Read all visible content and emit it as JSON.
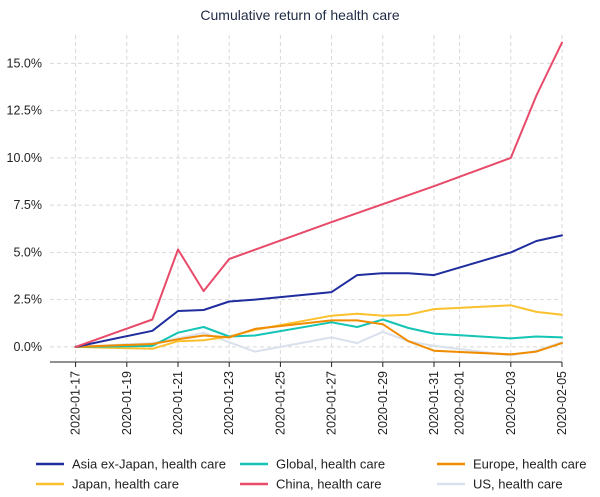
{
  "chart_data": {
    "type": "line",
    "title": "Cumulative return of health care",
    "xlabel": "",
    "ylabel": "",
    "x": [
      "2020-01-17",
      "2020-01-20",
      "2020-01-21",
      "2020-01-22",
      "2020-01-23",
      "2020-01-24",
      "2020-01-27",
      "2020-01-28",
      "2020-01-29",
      "2020-01-30",
      "2020-01-31",
      "2020-02-03",
      "2020-02-04",
      "2020-02-05"
    ],
    "x_tick_labels": [
      "2020-01-17",
      "2020-01-19",
      "2020-01-21",
      "2020-01-23",
      "2020-01-25",
      "2020-01-27",
      "2020-01-29",
      "2020-01-31",
      "2020-02-01",
      "2020-02-03",
      "2020-02-05"
    ],
    "y_ticks": [
      0,
      2.5,
      5,
      7.5,
      10,
      12.5,
      15
    ],
    "y_tick_labels": [
      "0.0%",
      "2.5%",
      "5.0%",
      "7.5%",
      "10.0%",
      "12.5%",
      "15.0%"
    ],
    "ylim": [
      -0.8,
      16.5
    ],
    "xlim": [
      "2020-01-16",
      "2020-02-05"
    ],
    "grid": true,
    "legend_position": "bottom",
    "series": [
      {
        "name": "Asia ex-Japan, health care",
        "color": "#1f2d9e",
        "points": [
          [
            "2020-01-17",
            0
          ],
          [
            "2020-01-20",
            0.85
          ],
          [
            "2020-01-21",
            1.9
          ],
          [
            "2020-01-22",
            1.95
          ],
          [
            "2020-01-23",
            2.4
          ],
          [
            "2020-01-24",
            2.5
          ],
          [
            "2020-01-27",
            2.9
          ],
          [
            "2020-01-28",
            3.8
          ],
          [
            "2020-01-29",
            3.9
          ],
          [
            "2020-01-30",
            3.9
          ],
          [
            "2020-01-31",
            3.8
          ],
          [
            "2020-02-03",
            5.0
          ],
          [
            "2020-02-04",
            5.6
          ],
          [
            "2020-02-05",
            5.9
          ]
        ]
      },
      {
        "name": "Global, health care",
        "color": "#14c4b4",
        "points": [
          [
            "2020-01-17",
            0
          ],
          [
            "2020-01-20",
            0.05
          ],
          [
            "2020-01-21",
            0.75
          ],
          [
            "2020-01-22",
            1.05
          ],
          [
            "2020-01-23",
            0.55
          ],
          [
            "2020-01-24",
            0.6
          ],
          [
            "2020-01-27",
            1.3
          ],
          [
            "2020-01-28",
            1.05
          ],
          [
            "2020-01-29",
            1.45
          ],
          [
            "2020-01-30",
            1.0
          ],
          [
            "2020-01-31",
            0.7
          ],
          [
            "2020-02-03",
            0.45
          ],
          [
            "2020-02-04",
            0.55
          ],
          [
            "2020-02-05",
            0.5
          ]
        ]
      },
      {
        "name": "Europe, health care",
        "color": "#f08c00",
        "points": [
          [
            "2020-01-17",
            0
          ],
          [
            "2020-01-20",
            0.15
          ],
          [
            "2020-01-21",
            0.4
          ],
          [
            "2020-01-22",
            0.6
          ],
          [
            "2020-01-23",
            0.5
          ],
          [
            "2020-01-24",
            0.95
          ],
          [
            "2020-01-27",
            1.4
          ],
          [
            "2020-01-28",
            1.4
          ],
          [
            "2020-01-29",
            1.2
          ],
          [
            "2020-01-30",
            0.3
          ],
          [
            "2020-01-31",
            -0.2
          ],
          [
            "2020-02-03",
            -0.4
          ],
          [
            "2020-02-04",
            -0.25
          ],
          [
            "2020-02-05",
            0.2
          ]
        ]
      },
      {
        "name": "Japan, health care",
        "color": "#fbc02d",
        "points": [
          [
            "2020-01-17",
            0
          ],
          [
            "2020-01-20",
            -0.1
          ],
          [
            "2020-01-21",
            0.3
          ],
          [
            "2020-01-22",
            0.35
          ],
          [
            "2020-01-23",
            0.55
          ],
          [
            "2020-01-24",
            0.9
          ],
          [
            "2020-01-27",
            1.65
          ],
          [
            "2020-01-28",
            1.75
          ],
          [
            "2020-01-29",
            1.65
          ],
          [
            "2020-01-30",
            1.7
          ],
          [
            "2020-01-31",
            2.0
          ],
          [
            "2020-02-03",
            2.2
          ],
          [
            "2020-02-04",
            1.85
          ],
          [
            "2020-02-05",
            1.7
          ]
        ]
      },
      {
        "name": "China, health care",
        "color": "#e84a6a",
        "points": [
          [
            "2020-01-17",
            0
          ],
          [
            "2020-01-20",
            1.45
          ],
          [
            "2020-01-21",
            5.15
          ],
          [
            "2020-01-22",
            2.95
          ],
          [
            "2020-01-23",
            4.65
          ],
          [
            "2020-01-27",
            6.6
          ],
          [
            "2020-01-31",
            8.5
          ],
          [
            "2020-02-03",
            10.0
          ],
          [
            "2020-02-04",
            13.3
          ],
          [
            "2020-02-05",
            16.1
          ]
        ]
      },
      {
        "name": "US, health care",
        "color": "#d9e1ec",
        "points": [
          [
            "2020-01-17",
            0
          ],
          [
            "2020-01-20",
            0.2
          ],
          [
            "2020-01-21",
            0.45
          ],
          [
            "2020-01-22",
            0.75
          ],
          [
            "2020-01-23",
            0.25
          ],
          [
            "2020-01-24",
            -0.25
          ],
          [
            "2020-01-27",
            0.5
          ],
          [
            "2020-01-28",
            0.2
          ],
          [
            "2020-01-29",
            0.8
          ],
          [
            "2020-01-30",
            0.3
          ],
          [
            "2020-01-31",
            0.05
          ],
          [
            "2020-02-03",
            -0.45
          ],
          [
            "2020-02-04",
            -0.2
          ],
          [
            "2020-02-05",
            0.25
          ]
        ]
      }
    ]
  }
}
